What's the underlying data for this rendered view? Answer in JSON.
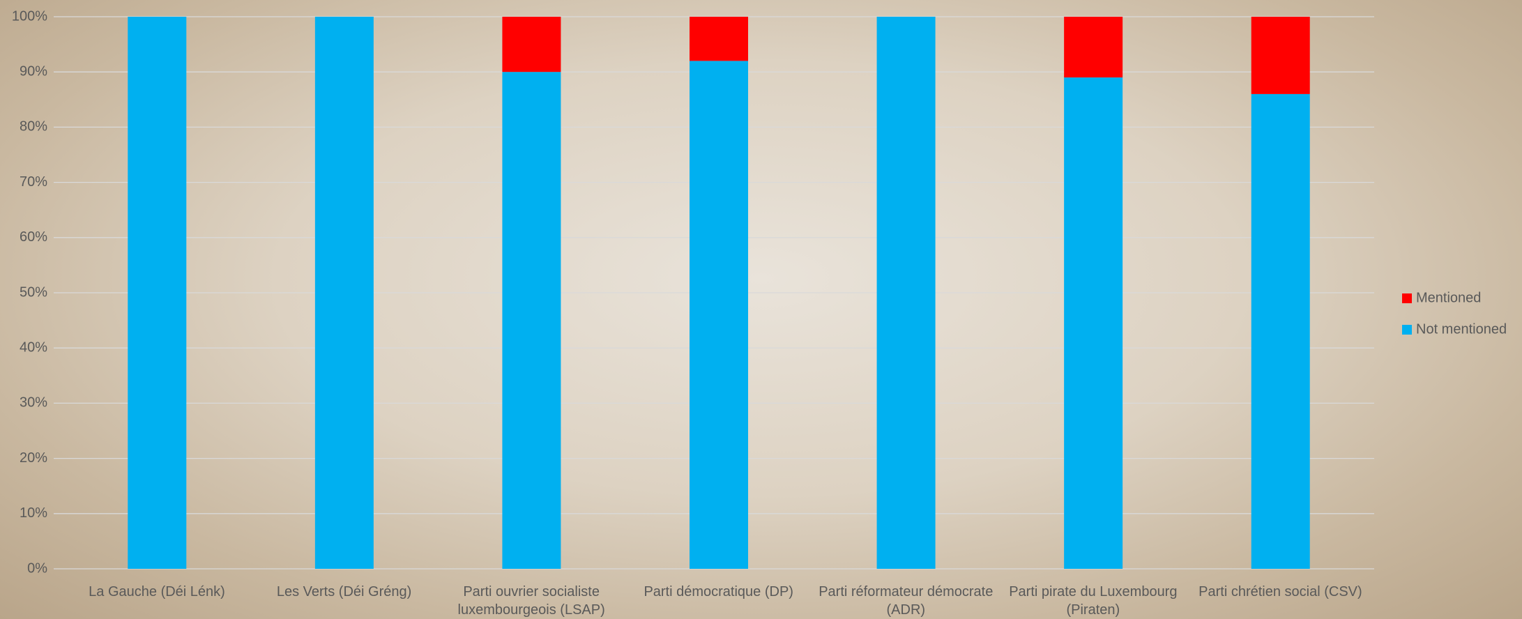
{
  "chart_data": {
    "type": "stacked_bar",
    "categories": [
      "La Gauche (Déi Lénk)",
      "Les Verts (Déi Gréng)",
      "Parti ouvrier socialiste luxembourgeois (LSAP)",
      "Parti démocratique (DP)",
      "Parti réformateur démocrate (ADR)",
      "Parti pirate du Luxembourg (Piraten)",
      "Parti chrétien social (CSV)"
    ],
    "series": [
      {
        "name": "Not mentioned",
        "color": "#00b0f0",
        "values": [
          100,
          100,
          90,
          92,
          100,
          89,
          86
        ]
      },
      {
        "name": "Mentioned",
        "color": "#ff0000",
        "values": [
          0,
          0,
          10,
          8,
          0,
          11,
          14
        ]
      }
    ],
    "ylim": [
      0,
      100
    ],
    "yticks": [
      {
        "value": 0,
        "label": "0%"
      },
      {
        "value": 10,
        "label": "10%"
      },
      {
        "value": 20,
        "label": "20%"
      },
      {
        "value": 30,
        "label": "30%"
      },
      {
        "value": 40,
        "label": "40%"
      },
      {
        "value": 50,
        "label": "50%"
      },
      {
        "value": 60,
        "label": "60%"
      },
      {
        "value": 70,
        "label": "70%"
      },
      {
        "value": 80,
        "label": "80%"
      },
      {
        "value": 90,
        "label": "90%"
      },
      {
        "value": 100,
        "label": "100%"
      }
    ],
    "grid": true,
    "legend": "right"
  }
}
